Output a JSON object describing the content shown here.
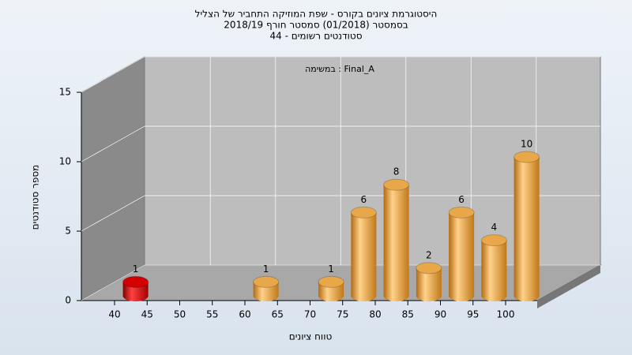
{
  "chart_data": {
    "type": "bar",
    "title": [
      "היסטוגרמת ציונים בקורס - שפת המוזיקה התחביר של הצליל",
      "בסמסטר  (01/2018)  סמסטר חורף 2018/19",
      "סטודנטים רשומים - 44"
    ],
    "annotation": "במשימה : Final_A",
    "x_label": "טווח ציונים",
    "y_label": "מספר סטודנטים",
    "categories": [
      "40",
      "45",
      "50",
      "55",
      "60",
      "65",
      "70",
      "75",
      "80",
      "85",
      "90",
      "95",
      "100"
    ],
    "values": [
      1,
      0,
      0,
      0,
      1,
      0,
      1,
      6,
      8,
      2,
      6,
      4,
      10
    ],
    "colors": [
      "#d40000",
      "#e8a84a",
      "#e8a84a",
      "#e8a84a",
      "#e8a84a",
      "#e8a84a",
      "#e8a84a",
      "#e8a84a",
      "#e8a84a",
      "#e8a84a",
      "#e8a84a",
      "#e8a84a",
      "#e8a84a"
    ],
    "ylim": [
      0,
      15
    ],
    "yticks": [
      0,
      5,
      10,
      15
    ],
    "grid": true
  }
}
